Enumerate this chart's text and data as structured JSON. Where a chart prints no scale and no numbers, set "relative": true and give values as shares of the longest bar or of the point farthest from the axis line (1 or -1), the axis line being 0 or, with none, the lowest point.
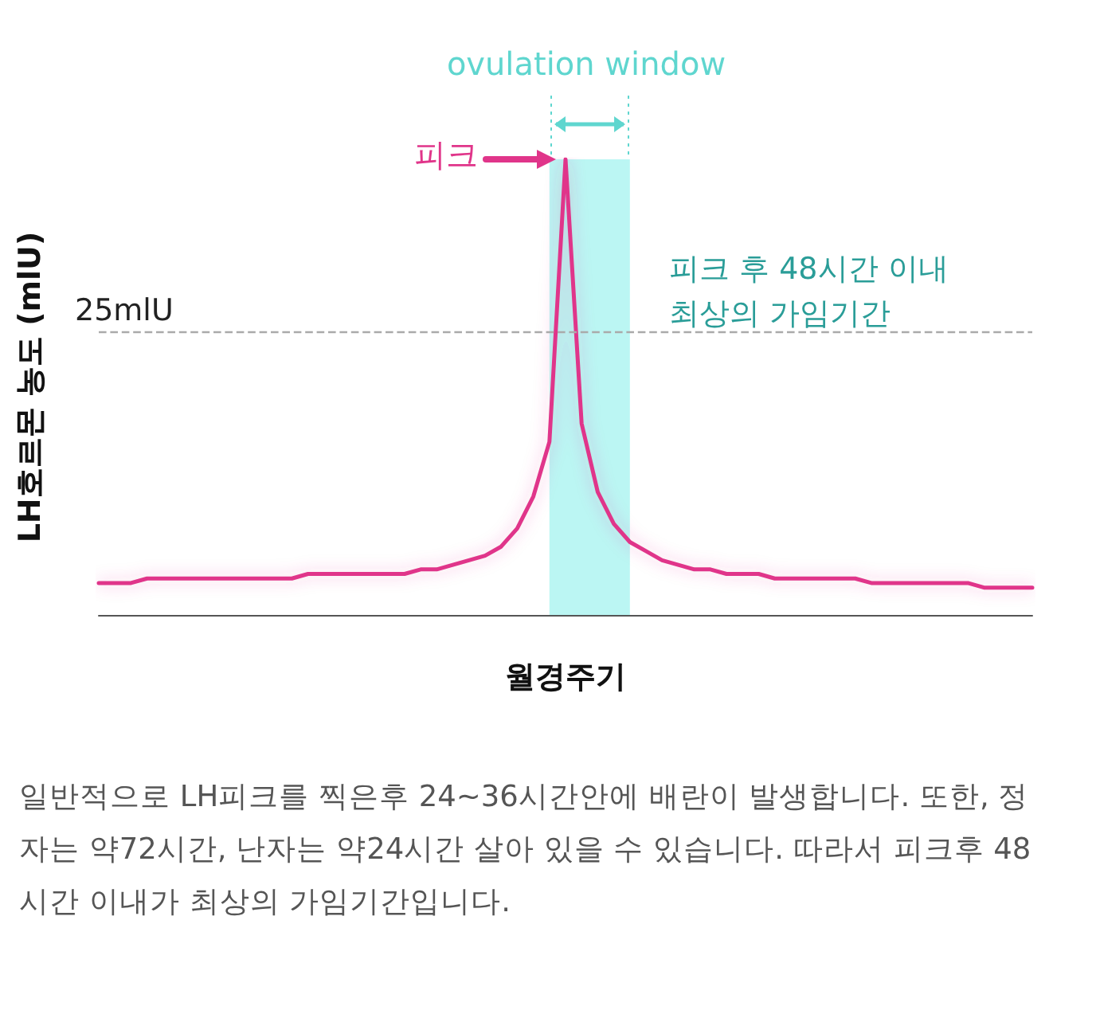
{
  "chart_data": {
    "type": "line",
    "relative": true,
    "xlabel": "월경주기",
    "ylabel": "LH호르몬 농도 (mlU)",
    "categories": [
      null,
      null,
      null,
      null,
      null,
      null,
      null,
      null,
      null,
      null,
      null,
      null,
      null,
      null,
      null,
      null,
      null,
      null,
      null,
      null,
      null,
      null,
      null,
      null,
      null,
      null,
      null,
      null,
      null,
      null,
      null,
      null,
      null,
      null,
      null,
      null,
      null,
      null,
      null,
      null,
      null,
      null,
      null,
      null,
      null,
      null,
      null,
      null,
      null,
      null,
      null,
      null,
      null,
      null,
      null,
      null,
      null,
      null,
      null
    ],
    "series": [
      {
        "color": "#e0358a",
        "values": [
          0.07,
          0.07,
          0.07,
          0.08,
          0.08,
          0.08,
          0.08,
          0.08,
          0.08,
          0.08,
          0.08,
          0.08,
          0.08,
          0.09,
          0.09,
          0.09,
          0.09,
          0.09,
          0.09,
          0.09,
          0.1,
          0.1,
          0.11,
          0.12,
          0.13,
          0.15,
          0.19,
          0.26,
          0.38,
          1,
          0.42,
          0.27,
          0.2,
          0.16,
          0.14,
          0.12,
          0.11,
          0.1,
          0.1,
          0.09,
          0.09,
          0.09,
          0.08,
          0.08,
          0.08,
          0.08,
          0.08,
          0.08,
          0.07,
          0.07,
          0.07,
          0.07,
          0.07,
          0.07,
          0.07,
          0.06,
          0.06,
          0.06,
          0.06
        ]
      }
    ],
    "ref_lines": [
      {
        "axis": "y",
        "value": 0.62,
        "label": "25mlU",
        "color": "#aaaaaa",
        "line_style": "dashed"
      }
    ],
    "annotations": [
      "피크",
      "피크 후 48시간 이내 최상의 가임기간",
      "ovulation window",
      "일반적으로 LH피크를 찍은후 24~36시간안에 배란이 발생합니다. 또한, 정자는 약72시간, 난자는 약24시간 살아 있을 수 있습니다. 따라서 피크후 48시간 이내가 최상의 가임기간입니다."
    ],
    "grid": false,
    "marker": "none",
    "line_style": "solid"
  }
}
